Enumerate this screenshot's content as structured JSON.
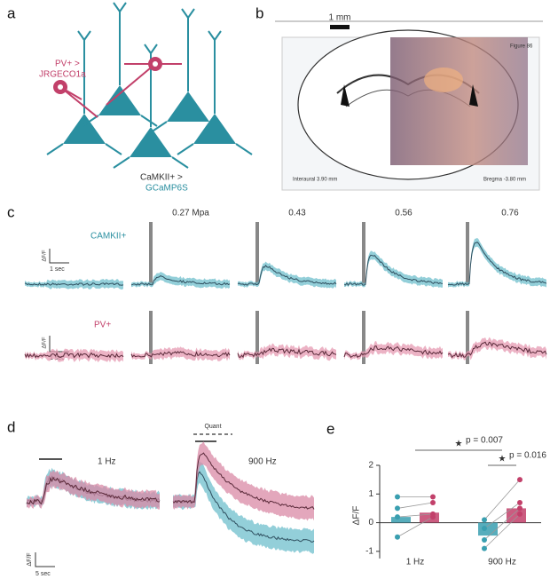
{
  "panel_labels": [
    "a",
    "b",
    "c",
    "d",
    "e"
  ],
  "panel_a": {
    "pv_label": "PV+ >",
    "pv_indicator": "JRGECO1a",
    "camkii_label": "CaMKII+ >",
    "camkii_indicator": "GCaMP6S"
  },
  "panel_b": {
    "scale": "1 mm",
    "plate": "Figure 86",
    "interaural": "Interaural 3.90 mm",
    "bregma": "Bregma -3.80 mm"
  },
  "panel_c": {
    "pressures": [
      "0.27 Mpa",
      "0.43",
      "0.56",
      "0.76"
    ],
    "rows": [
      "CAMKII+",
      "PV+"
    ],
    "scale_y": "ΔF/F",
    "scale_x": "1 sec"
  },
  "panel_d": {
    "conditions": [
      "1 Hz",
      "900 Hz"
    ],
    "quant": "Quant",
    "scale_y": "ΔF/F",
    "scale_x": "5 sec"
  },
  "chart_data": {
    "type": "bar",
    "ylabel": "ΔF/F",
    "categories": [
      "1 Hz",
      "900 Hz"
    ],
    "series": [
      {
        "color": "#3a9fb0",
        "values": [
          0.2,
          -0.45
        ],
        "points": [
          [
            0.9,
            0.5,
            0.2,
            -0.5
          ],
          [
            0.1,
            -0.2,
            -0.6,
            -0.9
          ]
        ]
      },
      {
        "color": "#c2406a",
        "values": [
          0.35,
          0.5
        ],
        "points": [
          [
            0.9,
            0.7,
            0.3,
            0.2
          ],
          [
            1.5,
            0.7,
            0.5,
            0.3
          ]
        ]
      }
    ],
    "ylim": [
      -1.5,
      2
    ],
    "yticks": [
      -1,
      0,
      1,
      2
    ],
    "significance": [
      {
        "marker": "★",
        "label": "p = 0.007"
      },
      {
        "marker": "★",
        "label": "p = 0.016"
      }
    ]
  }
}
